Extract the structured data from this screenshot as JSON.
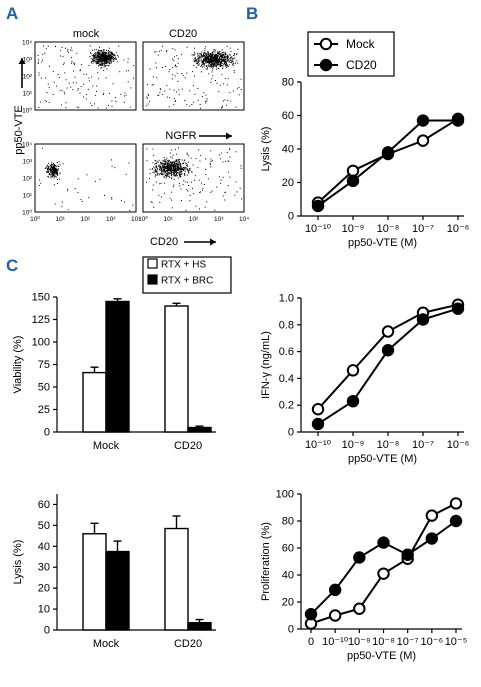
{
  "panel_letters": {
    "a": "A",
    "b": "B",
    "c": "C"
  },
  "colors": {
    "panel_letter": "#1f5fa6",
    "ink": "#000000",
    "paper": "#ffffff"
  },
  "chart_data": [
    {
      "type": "scatter",
      "panel": "A",
      "description_role": "flow cytometry dot plots (2x2)",
      "column_labels": [
        "mock",
        "CD20"
      ],
      "ylabel": "pp50-VTE",
      "row1_xlabel": "NGFR",
      "row2_xlabel": "CD20",
      "tick_labels": [
        "10⁰",
        "10¹",
        "10²",
        "10³",
        "10⁴"
      ],
      "axis_range": [
        0,
        4
      ],
      "log_scale": true,
      "plots": [
        {
          "name": "mock_ngfr",
          "populations": [
            {
              "cx": 2.7,
              "cy": 3.1,
              "n": 480,
              "sx": 0.28,
              "sy": 0.28
            }
          ],
          "background": 140
        },
        {
          "name": "cd20_ngfr",
          "populations": [
            {
              "cx": 2.8,
              "cy": 3.0,
              "n": 650,
              "sx": 0.5,
              "sy": 0.32
            }
          ],
          "background": 170
        },
        {
          "name": "mock_cd20",
          "populations": [
            {
              "cx": 0.7,
              "cy": 2.5,
              "n": 210,
              "sx": 0.16,
              "sy": 0.28
            }
          ],
          "background": 40
        },
        {
          "name": "cd20_cd20",
          "populations": [
            {
              "cx": 1.1,
              "cy": 2.6,
              "n": 540,
              "sx": 0.45,
              "sy": 0.35
            }
          ],
          "background": 130
        }
      ]
    },
    {
      "type": "line",
      "panel": "B",
      "x": [
        "10⁻¹⁰",
        "10⁻⁹",
        "10⁻⁸",
        "10⁻⁷",
        "10⁻⁶"
      ],
      "xlabel": "pp50-VTE (M)",
      "ylabel": "Lysis (%)",
      "ylim": [
        0,
        80
      ],
      "yticks": [
        0,
        20,
        40,
        60,
        80
      ],
      "legend_position": "top-left",
      "series": [
        {
          "name": "Mock",
          "marker": "open",
          "values": [
            8,
            27,
            37,
            45,
            58
          ]
        },
        {
          "name": "CD20",
          "marker": "filled",
          "values": [
            6,
            21,
            38,
            57,
            57
          ]
        }
      ]
    },
    {
      "type": "bar",
      "panel": "C",
      "categories": [
        "Mock",
        "CD20"
      ],
      "ylabel": "Viability (%)",
      "ylim": [
        0,
        150
      ],
      "yticks": [
        0,
        25,
        50,
        75,
        100,
        125,
        150
      ],
      "legend_position": "top-right",
      "series": [
        {
          "name": "RTX + HS",
          "fill": "open",
          "values": [
            66,
            140
          ],
          "errors": [
            6,
            3
          ]
        },
        {
          "name": "RTX + BRC",
          "fill": "filled",
          "values": [
            145,
            5
          ],
          "errors": [
            3,
            1.5
          ]
        }
      ]
    },
    {
      "type": "line",
      "panel": "C",
      "x": [
        "10⁻¹⁰",
        "10⁻⁹",
        "10⁻⁸",
        "10⁻⁷",
        "10⁻⁶"
      ],
      "xlabel": "pp50-VTE (M)",
      "ylabel": "IFN-γ (ng/mL)",
      "ylim": [
        0,
        1.0
      ],
      "yticks": [
        "0",
        "0.2",
        "0.4",
        "0.6",
        "0.8",
        "1.0"
      ],
      "series": [
        {
          "marker": "open",
          "values": [
            0.17,
            0.46,
            0.75,
            0.89,
            0.95
          ]
        },
        {
          "marker": "filled",
          "values": [
            0.06,
            0.23,
            0.61,
            0.84,
            0.92
          ]
        }
      ]
    },
    {
      "type": "bar",
      "panel": "C",
      "categories": [
        "Mock",
        "CD20"
      ],
      "ylabel": "Lysis (%)",
      "ylim": [
        0,
        65
      ],
      "yticks": [
        0,
        10,
        20,
        30,
        40,
        50,
        60
      ],
      "series": [
        {
          "fill": "open",
          "values": [
            46,
            48.5
          ],
          "errors": [
            5,
            6
          ]
        },
        {
          "fill": "filled",
          "values": [
            37.5,
            3.5
          ],
          "errors": [
            5,
            1.5
          ]
        }
      ]
    },
    {
      "type": "line",
      "panel": "C",
      "x": [
        "0",
        "10⁻¹⁰",
        "10⁻⁹",
        "10⁻⁸",
        "10⁻⁷",
        "10⁻⁶",
        "10⁻⁵"
      ],
      "xlabel": "pp50-VTE (M)",
      "ylabel": "Proliferation (%)",
      "ylim": [
        0,
        100
      ],
      "yticks": [
        0,
        20,
        40,
        60,
        80,
        100
      ],
      "series": [
        {
          "marker": "open",
          "values": [
            4,
            10,
            15,
            41,
            52,
            84,
            93
          ]
        },
        {
          "marker": "filled",
          "values": [
            11,
            29,
            53,
            64,
            55,
            67,
            80
          ]
        }
      ]
    }
  ]
}
